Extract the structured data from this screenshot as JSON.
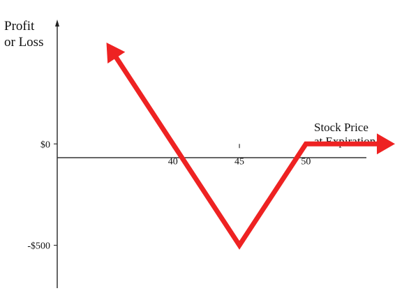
{
  "chart_data": {
    "type": "line",
    "title": "",
    "ylabel_lines": [
      "Profit",
      "or Loss"
    ],
    "xlabel_lines": [
      "Stock Price",
      "at Expiration"
    ],
    "x_ticks": [
      {
        "value": 40,
        "label": "40"
      },
      {
        "value": 45,
        "label": "45"
      },
      {
        "value": 50,
        "label": "50"
      }
    ],
    "y_ticks": [
      {
        "value": 0,
        "label": "$0"
      },
      {
        "value": -500,
        "label": "-$500"
      }
    ],
    "series": [
      {
        "x": [
          35,
          40,
          45,
          50,
          56.7
        ],
        "y": [
          500,
          0,
          -500,
          0,
          0
        ]
      }
    ],
    "xlim": [
      31.3,
      56.7
    ],
    "ylim": [
      -770,
      710
    ],
    "grid": false,
    "line_color": "#ee2222",
    "axis_color": "#333333",
    "arrow_left_end": true,
    "arrow_right_end": true
  }
}
